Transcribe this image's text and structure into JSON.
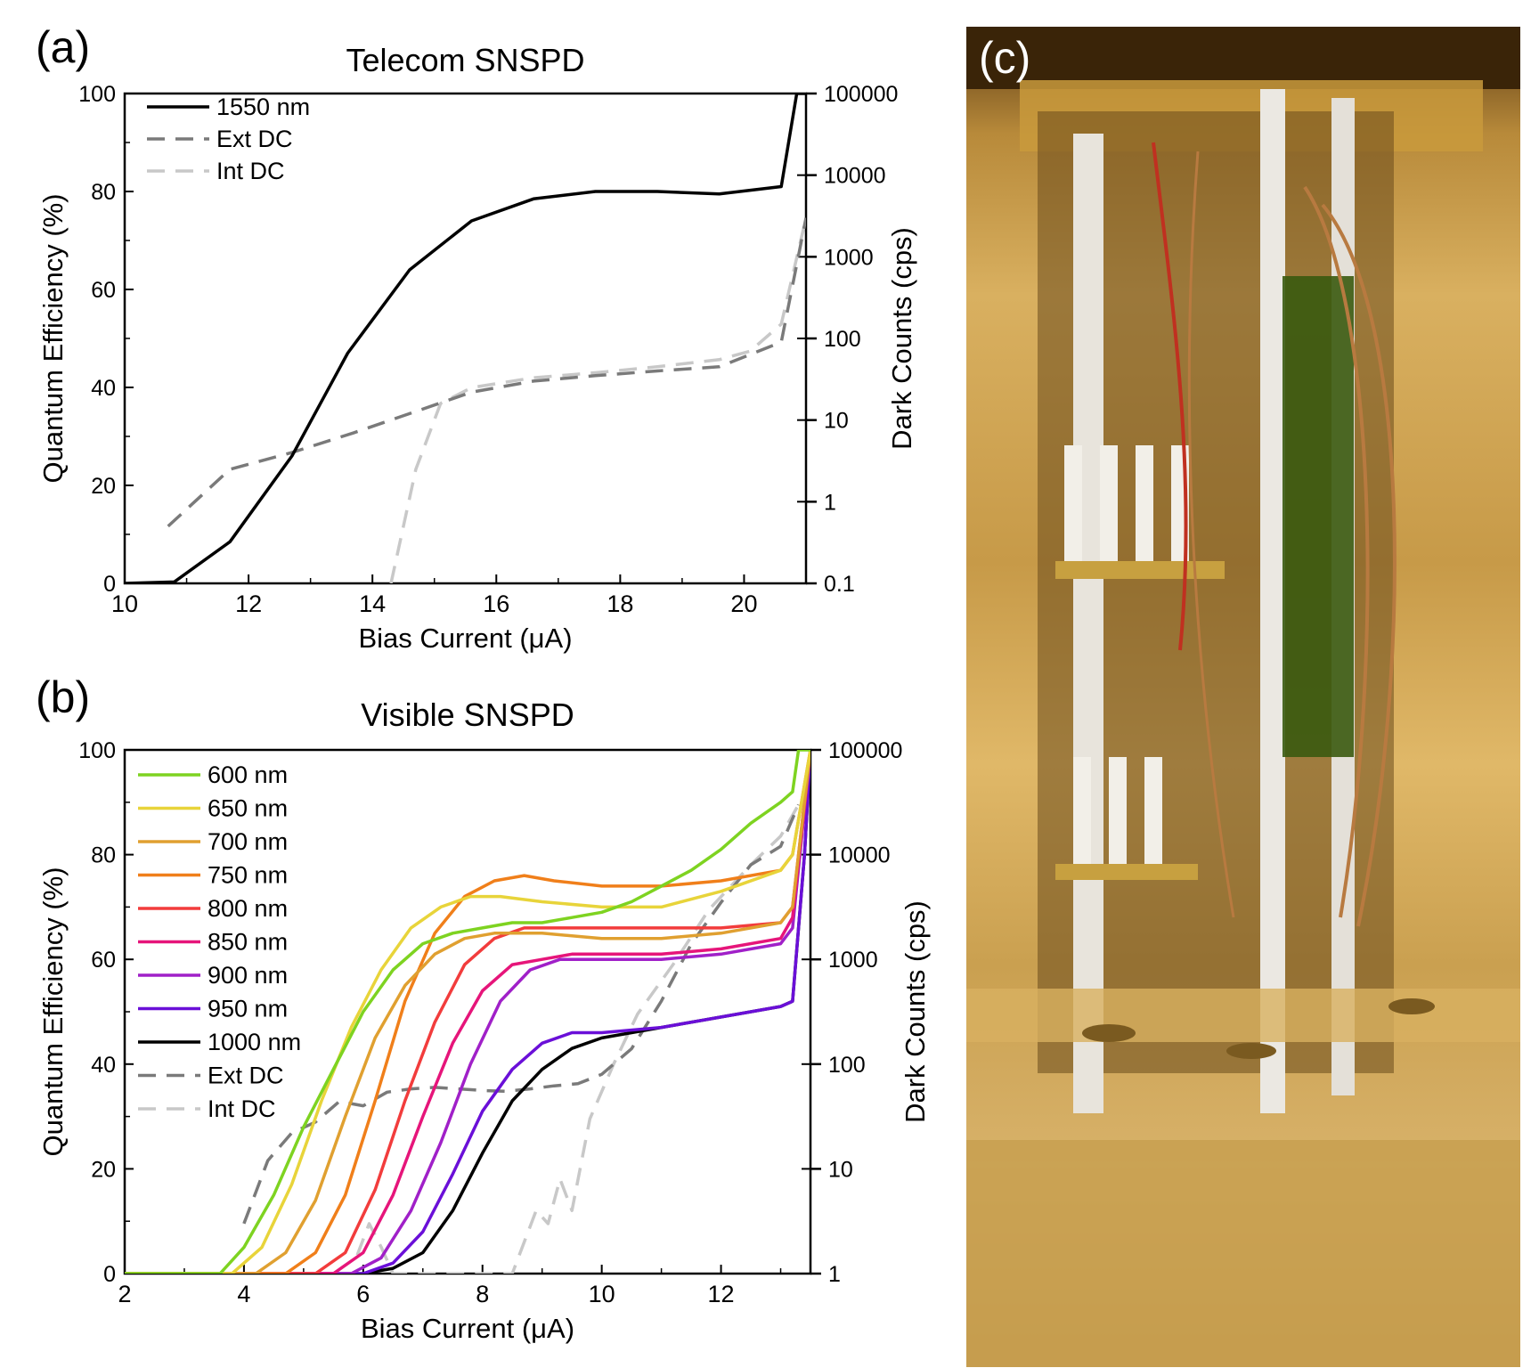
{
  "panel_labels": {
    "a": "(a)",
    "b": "(b)",
    "c": "(c)"
  },
  "chart_data": [
    {
      "type": "line",
      "title": "Telecom SNSPD",
      "xlabel": "Bias Current (μA)",
      "ylabel": "Quantum Efficiency (%)",
      "y2label": "Dark Counts (cps)",
      "xlim": [
        10,
        21
      ],
      "ylim": [
        0,
        100
      ],
      "y2lim_log": [
        0.1,
        100000
      ],
      "x_ticks": [
        "10",
        "12",
        "14",
        "16",
        "18",
        "20"
      ],
      "y_ticks": [
        "0",
        "20",
        "40",
        "60",
        "80",
        "100"
      ],
      "y2_ticks": [
        "0.1",
        "1",
        "10",
        "100",
        "1000",
        "10000",
        "100000"
      ],
      "legend": [
        "1550 nm",
        "Ext DC",
        "Int DC"
      ],
      "series": [
        {
          "name": "1550 nm",
          "axis": "left",
          "color": "#000000",
          "dash": false,
          "x": [
            10,
            10.8,
            11.7,
            12.7,
            13.6,
            14.6,
            15.6,
            16.6,
            17.6,
            18.6,
            19.6,
            20.6,
            20.85,
            21
          ],
          "y": [
            0,
            0.3,
            8.5,
            26,
            47,
            64,
            74,
            78.5,
            80,
            80,
            79.5,
            81,
            100,
            100
          ]
        },
        {
          "name": "Ext DC",
          "axis": "right",
          "color": "#7a7a7a",
          "dash": true,
          "x": [
            10.7,
            11.7,
            12.7,
            13.7,
            14.6,
            15.6,
            16.6,
            17.6,
            18.6,
            19.6,
            20.6,
            21
          ],
          "y": [
            0.5,
            2.5,
            4,
            7,
            12,
            22,
            30,
            35,
            40,
            45,
            90,
            3000
          ]
        },
        {
          "name": "Int DC",
          "axis": "right",
          "color": "#c8c8c8",
          "dash": true,
          "x": [
            14.3,
            14.7,
            15.1,
            15.6,
            16.6,
            17.6,
            18.6,
            19.6,
            20.1,
            20.6,
            21
          ],
          "y": [
            0.1,
            2.5,
            16,
            25,
            33,
            38,
            45,
            55,
            70,
            150,
            3000
          ]
        }
      ]
    },
    {
      "type": "line",
      "title": "Visible SNSPD",
      "xlabel": "Bias Current (μA)",
      "ylabel": "Quantum Efficiency (%)",
      "y2label": "Dark Counts (cps)",
      "xlim": [
        2,
        13.5
      ],
      "ylim": [
        0,
        100
      ],
      "y2lim_log": [
        1,
        100000
      ],
      "x_ticks": [
        "2",
        "4",
        "6",
        "8",
        "10",
        "12"
      ],
      "y_ticks": [
        "0",
        "20",
        "40",
        "60",
        "80",
        "100"
      ],
      "y2_ticks": [
        "1",
        "10",
        "100",
        "1000",
        "10000",
        "100000"
      ],
      "legend": [
        "600 nm",
        "650 nm",
        "700 nm",
        "750 nm",
        "800 nm",
        "850 nm",
        "900 nm",
        "950 nm",
        "1000 nm",
        "Ext DC",
        "Int DC"
      ],
      "series": [
        {
          "name": "600 nm",
          "axis": "left",
          "color": "#7ed321",
          "dash": false,
          "x": [
            2,
            3.6,
            4,
            4.5,
            5,
            5.5,
            6,
            6.5,
            7,
            7.5,
            8,
            8.5,
            9,
            9.5,
            10,
            10.5,
            11,
            11.5,
            12,
            12.5,
            13,
            13.2,
            13.3,
            13.5
          ],
          "y": [
            0,
            0,
            5,
            15,
            28,
            39,
            50,
            58,
            63,
            65,
            66,
            67,
            67,
            68,
            69,
            71,
            74,
            77,
            81,
            86,
            90,
            92,
            100,
            100
          ]
        },
        {
          "name": "650 nm",
          "axis": "left",
          "color": "#e8d43a",
          "dash": false,
          "x": [
            2,
            3.8,
            4.3,
            4.8,
            5.3,
            5.8,
            6.3,
            6.8,
            7.3,
            7.8,
            8.3,
            9,
            10,
            11,
            12,
            13,
            13.2,
            13.5
          ],
          "y": [
            0,
            0,
            5,
            17,
            33,
            47,
            58,
            66,
            70,
            72,
            72,
            71,
            70,
            70,
            73,
            77,
            80,
            100
          ]
        },
        {
          "name": "700 nm",
          "axis": "left",
          "color": "#e0a030",
          "dash": false,
          "x": [
            2,
            4.2,
            4.7,
            5.2,
            5.7,
            6.2,
            6.7,
            7.2,
            7.7,
            8.2,
            9,
            10,
            11,
            12,
            13,
            13.2,
            13.5
          ],
          "y": [
            0,
            0,
            4,
            14,
            30,
            45,
            55,
            61,
            64,
            65,
            65,
            64,
            64,
            65,
            67,
            70,
            100
          ]
        },
        {
          "name": "750 nm",
          "axis": "left",
          "color": "#f07f1a",
          "dash": false,
          "x": [
            2,
            4.7,
            5.2,
            5.7,
            6.2,
            6.7,
            7.2,
            7.7,
            8.2,
            8.7,
            9.2,
            10,
            11,
            12,
            13,
            13.2,
            13.5
          ],
          "y": [
            0,
            0,
            4,
            15,
            33,
            52,
            65,
            72,
            75,
            76,
            75,
            74,
            74,
            75,
            77,
            80,
            100
          ]
        },
        {
          "name": "800 nm",
          "axis": "left",
          "color": "#f23c3c",
          "dash": false,
          "x": [
            2,
            5.2,
            5.7,
            6.2,
            6.7,
            7.2,
            7.7,
            8.2,
            8.7,
            9.2,
            10,
            11,
            12,
            13,
            13.2,
            13.5
          ],
          "y": [
            0,
            0,
            4,
            16,
            33,
            48,
            59,
            64,
            66,
            66,
            66,
            66,
            66,
            67,
            70,
            100
          ]
        },
        {
          "name": "850 nm",
          "axis": "left",
          "color": "#e6157a",
          "dash": false,
          "x": [
            2,
            5.5,
            6,
            6.5,
            7,
            7.5,
            8,
            8.5,
            9,
            9.5,
            10,
            11,
            12,
            13,
            13.2,
            13.5
          ],
          "y": [
            0,
            0,
            4,
            15,
            30,
            44,
            54,
            59,
            60,
            61,
            61,
            61,
            62,
            64,
            68,
            100
          ]
        },
        {
          "name": "900 nm",
          "axis": "left",
          "color": "#a020c8",
          "dash": false,
          "x": [
            2,
            5.8,
            6.3,
            6.8,
            7.3,
            7.8,
            8.3,
            8.8,
            9.3,
            10,
            11,
            12,
            13,
            13.2,
            13.5
          ],
          "y": [
            0,
            0,
            3,
            12,
            25,
            40,
            52,
            58,
            60,
            60,
            60,
            61,
            63,
            66,
            100
          ]
        },
        {
          "name": "950 nm",
          "axis": "left",
          "color": "#6a0fd8",
          "dash": false,
          "x": [
            2,
            6,
            6.5,
            7,
            7.5,
            8,
            8.5,
            9,
            9.5,
            10,
            11,
            12,
            13,
            13.2,
            13.4,
            13.5
          ],
          "y": [
            0,
            0,
            2,
            8,
            19,
            31,
            39,
            44,
            46,
            46,
            47,
            49,
            51,
            52,
            80,
            100
          ]
        },
        {
          "name": "1000 nm",
          "axis": "left",
          "color": "#000000",
          "dash": false,
          "x": [
            2,
            6,
            6.5,
            7,
            7.5,
            8,
            8.5,
            9,
            9.5,
            10,
            11,
            12,
            13,
            13.2,
            13.4,
            13.5
          ],
          "y": [
            0,
            0,
            1,
            4,
            12,
            23,
            33,
            39,
            43,
            45,
            47,
            49,
            51,
            52,
            80,
            100
          ]
        },
        {
          "name": "Ext DC",
          "axis": "right",
          "color": "#7a7a7a",
          "dash": true,
          "x": [
            4,
            4.4,
            4.8,
            5.2,
            5.6,
            6,
            6.4,
            6.8,
            7.2,
            7.6,
            8,
            8.4,
            8.8,
            9.2,
            9.6,
            10,
            10.5,
            11,
            11.5,
            12,
            12.5,
            13,
            13.3
          ],
          "y": [
            3,
            12,
            22,
            28,
            44,
            40,
            54,
            58,
            60,
            58,
            56,
            55,
            58,
            62,
            65,
            80,
            140,
            400,
            1400,
            3500,
            8000,
            12000,
            30000
          ]
        },
        {
          "name": "Int DC",
          "axis": "right",
          "color": "#c8c8c8",
          "dash": true,
          "x": [
            5.9,
            6.1,
            6.3,
            6.5,
            7,
            7.5,
            8.5,
            8.7,
            8.9,
            9.1,
            9.3,
            9.5,
            9.8,
            10.2,
            10.6,
            11.2,
            11.8,
            12.5,
            13,
            13.3
          ],
          "y": [
            1.5,
            3,
            1.8,
            1,
            1,
            1,
            1,
            2,
            4,
            3,
            8,
            4,
            30,
            100,
            300,
            900,
            3000,
            8000,
            15000,
            30000
          ]
        }
      ]
    }
  ]
}
